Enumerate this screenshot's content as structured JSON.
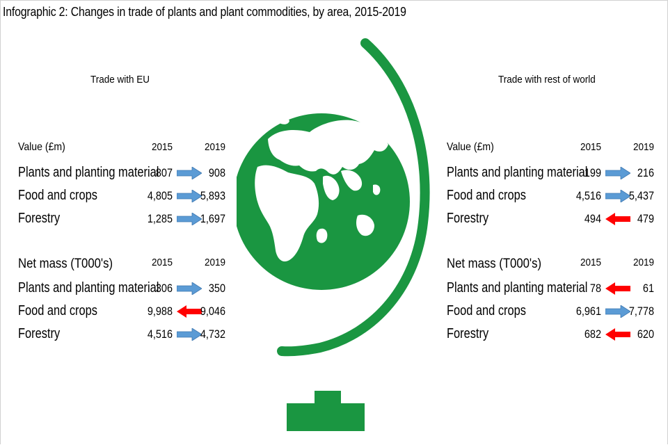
{
  "title": "Infographic 2: Changes in trade of plants and plant commodities, by area, 2015-2019",
  "colors": {
    "globe": "#1a9641",
    "arrow_up": "#5b9bd5",
    "arrow_down": "#ff0000"
  },
  "panels": [
    {
      "heading": "Trade with EU",
      "sections": [
        {
          "label": "Value (£m)",
          "year_a": "2015",
          "year_b": "2019",
          "rows": [
            {
              "label": "Plants and planting material",
              "v2015": "807",
              "v2019": "908",
              "direction": "up"
            },
            {
              "label": "Food and crops",
              "v2015": "4,805",
              "v2019": "5,893",
              "direction": "up"
            },
            {
              "label": "Forestry",
              "v2015": "1,285",
              "v2019": "1,697",
              "direction": "up"
            }
          ]
        },
        {
          "label": "Net mass (T000's)",
          "year_a": "2015",
          "year_b": "2019",
          "rows": [
            {
              "label": "Plants and planting material",
              "v2015": "306",
              "v2019": "350",
              "direction": "up"
            },
            {
              "label": "Food and crops",
              "v2015": "9,988",
              "v2019": "9,046",
              "direction": "down"
            },
            {
              "label": "Forestry",
              "v2015": "4,516",
              "v2019": "4,732",
              "direction": "up"
            }
          ]
        }
      ]
    },
    {
      "heading": "Trade with rest of world",
      "sections": [
        {
          "label": "Value (£m)",
          "year_a": "2015",
          "year_b": "2019",
          "rows": [
            {
              "label": "Plants and planting material",
              "v2015": "199",
              "v2019": "216",
              "direction": "up"
            },
            {
              "label": "Food and crops",
              "v2015": "4,516",
              "v2019": "5,437",
              "direction": "up"
            },
            {
              "label": "Forestry",
              "v2015": "494",
              "v2019": "479",
              "direction": "down"
            }
          ]
        },
        {
          "label": "Net mass (T000's)",
          "year_a": "2015",
          "year_b": "2019",
          "rows": [
            {
              "label": "Plants and planting material",
              "v2015": "78",
              "v2019": "61",
              "direction": "down"
            },
            {
              "label": "Food and crops",
              "v2015": "6,961",
              "v2019": "7,778",
              "direction": "up"
            },
            {
              "label": "Forestry",
              "v2015": "682",
              "v2019": "620",
              "direction": "down"
            }
          ]
        }
      ]
    }
  ],
  "chart_data": {
    "type": "table",
    "title": "Infographic 2: Changes in trade of plants and plant commodities, by area, 2015-2019",
    "columns": [
      "2015",
      "2019"
    ],
    "tables": [
      {
        "area": "Trade with EU",
        "measure": "Value (£m)",
        "rows": [
          {
            "category": "Plants and planting material",
            "values": [
              807,
              908
            ]
          },
          {
            "category": "Food and crops",
            "values": [
              4805,
              5893
            ]
          },
          {
            "category": "Forestry",
            "values": [
              1285,
              1697
            ]
          }
        ]
      },
      {
        "area": "Trade with EU",
        "measure": "Net mass (T000's)",
        "rows": [
          {
            "category": "Plants and planting material",
            "values": [
              306,
              350
            ]
          },
          {
            "category": "Food and crops",
            "values": [
              9988,
              9046
            ]
          },
          {
            "category": "Forestry",
            "values": [
              4516,
              4732
            ]
          }
        ]
      },
      {
        "area": "Trade with rest of world",
        "measure": "Value (£m)",
        "rows": [
          {
            "category": "Plants and planting material",
            "values": [
              199,
              216
            ]
          },
          {
            "category": "Food and crops",
            "values": [
              4516,
              5437
            ]
          },
          {
            "category": "Forestry",
            "values": [
              494,
              479
            ]
          }
        ]
      },
      {
        "area": "Trade with rest of world",
        "measure": "Net mass (T000's)",
        "rows": [
          {
            "category": "Plants and planting material",
            "values": [
              78,
              61
            ]
          },
          {
            "category": "Food and crops",
            "values": [
              6961,
              7778
            ]
          },
          {
            "category": "Forestry",
            "values": [
              682,
              620
            ]
          }
        ]
      }
    ]
  }
}
